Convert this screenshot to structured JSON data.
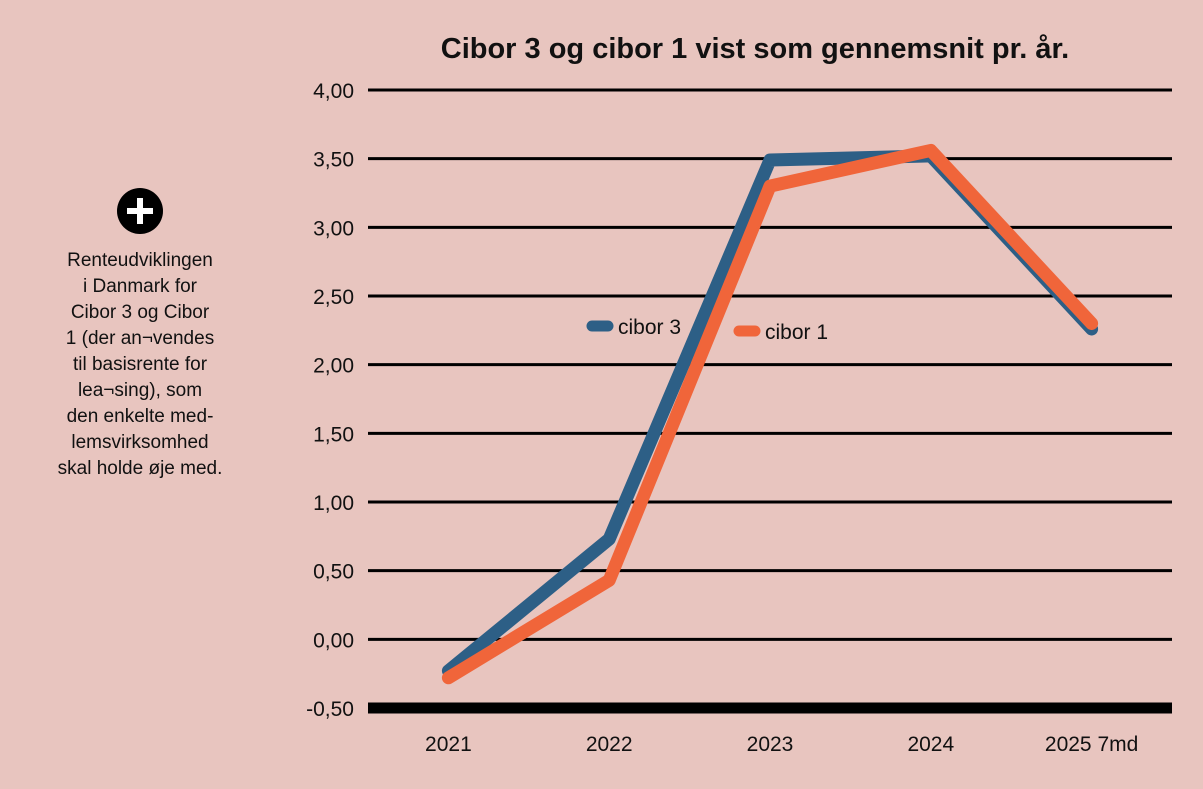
{
  "side_note": {
    "text": "Renteudviklingen\ni Danmark for\nCibor 3 og Cibor\n1 (der an¬vendes\ntil basisrente for\nlea¬sing), som\nden enkelte med-\nlemsvirksomhed\nskal holde øje med.",
    "icon": "plus-circle-icon"
  },
  "chart_data": {
    "type": "line",
    "title": "Cibor 3 og cibor 1 vist som gennemsnit pr. år.",
    "categories": [
      "2021",
      "2022",
      "2023",
      "2024",
      "2025 7md"
    ],
    "y_ticks": [
      "4,00",
      "3,50",
      "3,00",
      "2,50",
      "2,00",
      "1,50",
      "1,00",
      "0,50",
      "0,00",
      "-0,50"
    ],
    "ylim": [
      -0.5,
      4.0
    ],
    "grid": true,
    "legend_placement": "inside-center",
    "series": [
      {
        "name": "cibor 3",
        "color": "#2d5f86",
        "values": [
          -0.23,
          0.73,
          3.49,
          3.52,
          2.26
        ]
      },
      {
        "name": "cibor 1",
        "color": "#f0653a",
        "values": [
          -0.28,
          0.43,
          3.3,
          3.56,
          2.3
        ]
      }
    ]
  }
}
